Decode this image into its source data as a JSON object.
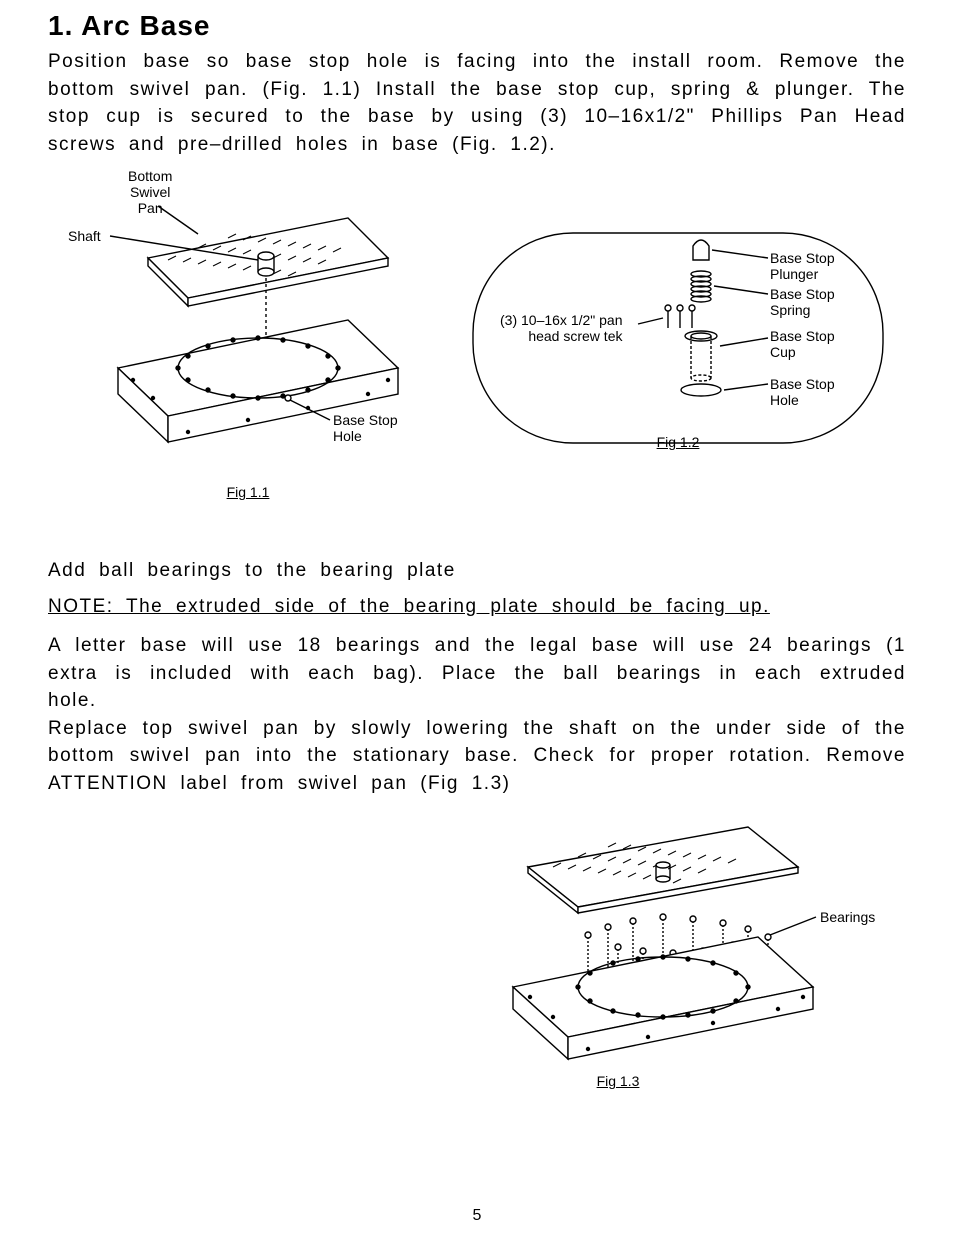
{
  "heading": "1.  Arc Base",
  "p1": "Position base so base stop hole is facing into the install room.  Remove the bottom swivel pan. (Fig. 1.1)  Install the base stop cup, spring & plunger. The stop cup is secured to the base by using (3) 10–16x1/2\" Phillips Pan Head screws and pre–drilled holes in base (Fig. 1.2).",
  "sub1": "Add ball bearings to the bearing plate",
  "note1": "NOTE:  The extruded side of the bearing plate should be facing up.",
  "p2": "A letter base will use 18 bearings and the legal base will use 24 bearings (1 extra is included with each bag).  Place the ball bearings in each extruded hole.",
  "p3": "Replace top swivel pan by slowly lowering the shaft on the under side of the bottom swivel pan into the stationary base.  Check for proper rotation. Remove ATTENTION label from swivel pan (Fig 1.3)",
  "fig1_1": {
    "caption": "Fig 1.1",
    "labels": {
      "bottom_swivel_pan": "Bottom\nSwivel\nPan",
      "shaft": "Shaft",
      "base_stop_hole": "Base Stop\nHole"
    }
  },
  "fig1_2": {
    "caption": "Fig 1.2",
    "labels": {
      "screws": "(3) 10–16x 1/2\" pan\nhead screw tek",
      "plunger": "Base Stop\nPlunger",
      "spring": "Base Stop\nSpring",
      "cup": "Base Stop\nCup",
      "hole": "Base Stop\nHole"
    }
  },
  "fig1_3": {
    "caption": "Fig 1.3",
    "labels": {
      "bearings": "Bearings"
    }
  },
  "page_number": "5",
  "colors": {
    "stroke": "#000000",
    "fill": "#ffffff"
  }
}
